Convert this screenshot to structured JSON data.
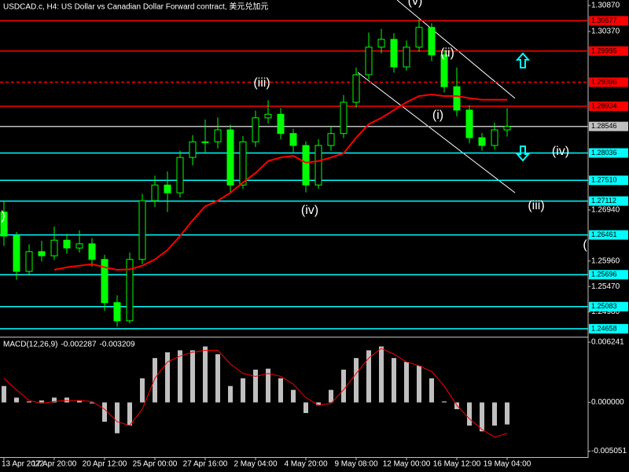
{
  "chart_data": [
    {
      "type": "candlestick",
      "title": "USDCAD.c, H4:  US Dollar vs Canadian Dollar Forward contract, 美元兑加元",
      "categories": [
        "13 Apr 2022",
        null,
        null,
        null,
        "17 Apr 20:00",
        null,
        null,
        null,
        "20 Apr 12:00",
        null,
        null,
        null,
        "25 Apr 00:00",
        null,
        null,
        null,
        "27 Apr 16:00",
        null,
        null,
        null,
        "2 May 04:00",
        null,
        null,
        null,
        "4 May 20:00",
        null,
        null,
        null,
        "9 May 08:00",
        null,
        null,
        null,
        "12 May 00:00",
        null,
        null,
        null,
        "16 May 12:00",
        null,
        null,
        null,
        "19 May 04:00"
      ],
      "open": [
        1.269,
        1.2644,
        1.2576,
        1.2614,
        1.2606,
        1.2636,
        1.2621,
        1.2629,
        1.2599,
        1.2516,
        1.2481,
        1.2599,
        1.2712,
        1.2742,
        1.2727,
        1.2795,
        1.2825,
        1.2825,
        1.2848,
        1.2742,
        1.2825,
        1.2871,
        1.2878,
        1.2841,
        1.2818,
        1.2742,
        1.2818,
        1.2841,
        1.2901,
        1.2954,
        1.3007,
        1.3022,
        1.2969,
        1.3007,
        1.3045,
        1.2992,
        1.2931,
        1.2886,
        1.2833,
        1.2818,
        1.2848
      ],
      "high": [
        1.2712,
        1.2652,
        1.2628,
        1.2635,
        1.2662,
        1.2648,
        1.2655,
        1.264,
        1.2608,
        1.253,
        1.2612,
        1.2725,
        1.276,
        1.2768,
        1.2808,
        1.2838,
        1.2868,
        1.2872,
        1.2858,
        1.2836,
        1.2885,
        1.2905,
        1.289,
        1.285,
        1.2826,
        1.283,
        1.2856,
        1.2915,
        1.2968,
        1.3035,
        1.3042,
        1.3034,
        1.302,
        1.306,
        1.3053,
        1.3002,
        1.2968,
        1.2895,
        1.2842,
        1.2862,
        1.289
      ],
      "low": [
        1.2625,
        1.256,
        1.257,
        1.2595,
        1.2598,
        1.261,
        1.2612,
        1.2585,
        1.25,
        1.247,
        1.2476,
        1.259,
        1.27,
        1.269,
        1.2718,
        1.278,
        1.2805,
        1.2812,
        1.2725,
        1.2735,
        1.2815,
        1.286,
        1.283,
        1.2805,
        1.2728,
        1.2735,
        1.2808,
        1.2832,
        1.289,
        1.2945,
        1.2995,
        1.2958,
        1.2962,
        1.2998,
        1.298,
        1.292,
        1.2874,
        1.2822,
        1.2808,
        1.281,
        1.2835
      ],
      "close": [
        1.2644,
        1.2576,
        1.2614,
        1.2606,
        1.2636,
        1.2621,
        1.2629,
        1.2599,
        1.2516,
        1.2481,
        1.2599,
        1.2712,
        1.2742,
        1.2727,
        1.2795,
        1.2825,
        1.2825,
        1.2848,
        1.2742,
        1.2825,
        1.2871,
        1.2878,
        1.2841,
        1.2818,
        1.2742,
        1.2818,
        1.2841,
        1.2901,
        1.2954,
        1.3007,
        1.3022,
        1.2969,
        1.3007,
        1.3045,
        1.2992,
        1.2931,
        1.2886,
        1.2833,
        1.2818,
        1.2848,
        1.28546
      ],
      "color": "#00ff00",
      "ma": {
        "color": "#ff0000",
        "values": [
          null,
          null,
          null,
          null,
          1.2579,
          1.2584,
          1.2587,
          1.259,
          1.2584,
          1.2579,
          1.258,
          1.2587,
          1.2599,
          1.2617,
          1.2644,
          1.2674,
          1.2701,
          1.2712,
          1.2727,
          1.2747,
          1.2765,
          1.2788,
          1.2795,
          1.2798,
          1.2785,
          1.2788,
          1.2795,
          1.2803,
          1.2833,
          1.2859,
          1.2871,
          1.2886,
          1.2901,
          1.2913,
          1.2916,
          1.2913,
          1.2913,
          1.2909,
          1.2906,
          1.2906,
          1.2906
        ]
      },
      "ylim": [
        1.24505,
        1.30976
      ],
      "yticks": [
        {
          "value": 1.3087,
          "label": "1.30870"
        },
        {
          "value": 1.3037,
          "label": "1.30370"
        },
        {
          "value": 1.2694,
          "label": "1.26940"
        },
        {
          "value": 1.2596,
          "label": "1.25960"
        },
        {
          "value": 1.2547,
          "label": "1.25470"
        },
        {
          "value": 1.2498,
          "label": "1.24980"
        }
      ],
      "levels": [
        {
          "value": 1.30577,
          "color": "#ff0000",
          "dashed": false
        },
        {
          "value": 1.29995,
          "color": "#ff0000",
          "dashed": false
        },
        {
          "value": 1.29396,
          "color": "#ff0000",
          "dashed": true
        },
        {
          "value": 1.28934,
          "color": "#ff0000",
          "dashed": false
        },
        {
          "value": 1.28546,
          "color": "#c0c0c0",
          "dashed": false
        },
        {
          "value": 1.28036,
          "color": "#00ffff",
          "dashed": false
        },
        {
          "value": 1.2751,
          "label": "1.27510",
          "color": "#00ffff",
          "dashed": false
        },
        {
          "value": 1.27112,
          "color": "#00ffff",
          "dashed": false
        },
        {
          "value": 1.26461,
          "color": "#00ffff",
          "dashed": false
        },
        {
          "value": 1.25696,
          "color": "#00ffff",
          "dashed": false
        },
        {
          "value": 1.25083,
          "color": "#00ffff",
          "dashed": false
        },
        {
          "value": 1.24658,
          "color": "#00ffff",
          "dashed": false
        }
      ],
      "annotations": [
        "(v)",
        "(iii)",
        "(iv)",
        "(ii)",
        "(i)",
        "(iv)",
        "(iii)",
        ")",
        "("
      ]
    },
    {
      "type": "macd",
      "title": "MACD(12,26,9)",
      "series": [
        {
          "color": "#c0c0c0",
          "values": [
            0.0017,
            0.0005,
            0.0001,
            0.0002,
            0.0005,
            0.0005,
            0.0002,
            -0.0001,
            -0.002,
            -0.0032,
            -0.0024,
            0.0025,
            0.0046,
            0.0052,
            0.0054,
            0.0054,
            0.0058,
            0.005,
            0.0017,
            0.0025,
            0.0034,
            0.0035,
            0.0025,
            0.0013,
            -0.0011,
            -0.0003,
            0.0013,
            0.0034,
            0.0046,
            0.0054,
            0.0058,
            0.0046,
            0.0042,
            0.0038,
            0.0025,
            0.0001,
            -0.0007,
            -0.0024,
            -0.003,
            -0.0024,
            -0.002287
          ]
        },
        {
          "color": "#ff0000",
          "values": [
            0.0025,
            0.0013,
            0.0002,
            -0.0001,
            0.0001,
            0.0002,
            0.0002,
            0.0001,
            -0.0007,
            -0.002,
            -0.0024,
            -0.0007,
            0.0025,
            0.0042,
            0.0048,
            0.0052,
            0.0054,
            0.0054,
            0.004,
            0.003,
            0.0027,
            0.003,
            0.0027,
            0.0019,
            0.0005,
            -0.0003,
            -0.0001,
            0.0013,
            0.003,
            0.0046,
            0.0056,
            0.005,
            0.0042,
            0.0038,
            0.0032,
            0.0017,
            -0.0003,
            -0.0017,
            -0.0028,
            -0.0036,
            -0.003209
          ]
        }
      ],
      "ylim": [
        -0.005665,
        0.006652
      ],
      "yticks": [
        0.006241,
        {
          "value": 0,
          "label": "0.000000"
        },
        -0.005051
      ]
    }
  ]
}
